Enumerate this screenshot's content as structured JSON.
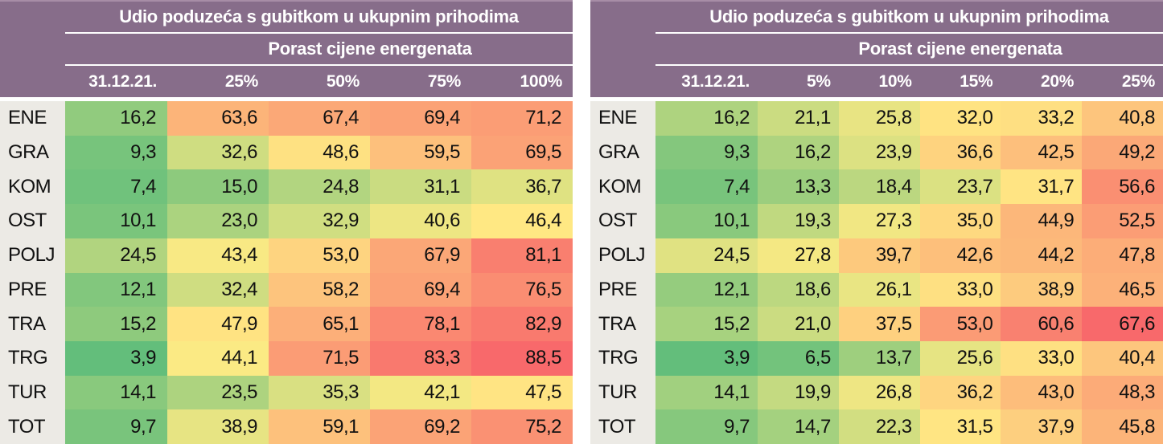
{
  "colors": {
    "page_background": "#FFFFFF",
    "header_background": "#876D8A",
    "header_top_edge": "#A78DA6",
    "header_text": "#FFFFFF",
    "header_underline": "#FFFFFF",
    "row_label_background": "#ECEAE5",
    "cell_text": "#111111",
    "scale_low_green": "#63BE7B",
    "scale_mid_yellow": "#FFEB84",
    "scale_high_red": "#F8696B"
  },
  "chart_data": [
    {
      "type": "heatmap",
      "title": "Udio poduzeća s gubitkom u ukupnim prihodima",
      "subtitle": "Porast cijene energenata",
      "columns": [
        "31.12.21.",
        "25%",
        "50%",
        "75%",
        "100%"
      ],
      "row_labels": [
        "ENE",
        "GRA",
        "KOM",
        "OST",
        "POLJ",
        "PRE",
        "TRA",
        "TRG",
        "TUR",
        "TOT"
      ],
      "values": [
        [
          16.2,
          63.6,
          67.4,
          69.4,
          71.2
        ],
        [
          9.3,
          32.6,
          48.6,
          59.5,
          69.5
        ],
        [
          7.4,
          15.0,
          24.8,
          31.1,
          36.7
        ],
        [
          10.1,
          23.0,
          32.9,
          40.6,
          46.4
        ],
        [
          24.5,
          43.4,
          53.0,
          67.9,
          81.1
        ],
        [
          12.1,
          32.4,
          58.2,
          69.4,
          76.5
        ],
        [
          15.2,
          47.9,
          65.1,
          78.1,
          82.9
        ],
        [
          3.9,
          44.1,
          71.5,
          83.3,
          88.5
        ],
        [
          14.1,
          23.5,
          35.3,
          42.1,
          47.5
        ],
        [
          9.7,
          38.9,
          59.1,
          69.2,
          75.2
        ]
      ],
      "color_scale": {
        "low_color": "#63BE7B",
        "mid_color": "#FFEB84",
        "high_color": "#F8696B",
        "midpoint": "median",
        "normalization": "per-table"
      },
      "decimal_separator": ",",
      "decimals": 1,
      "legend": "none",
      "grid": "off"
    },
    {
      "type": "heatmap",
      "title": "Udio poduzeća s gubitkom u ukupnim prihodima",
      "subtitle": "Porast cijene energenata",
      "columns": [
        "31.12.21.",
        "5%",
        "10%",
        "15%",
        "20%",
        "25%"
      ],
      "row_labels": [
        "ENE",
        "GRA",
        "KOM",
        "OST",
        "POLJ",
        "PRE",
        "TRA",
        "TRG",
        "TUR",
        "TOT"
      ],
      "values": [
        [
          16.2,
          21.1,
          25.8,
          32.0,
          33.2,
          40.8
        ],
        [
          9.3,
          16.2,
          23.9,
          36.6,
          42.5,
          49.2
        ],
        [
          7.4,
          13.3,
          18.4,
          23.7,
          31.7,
          56.6
        ],
        [
          10.1,
          19.3,
          27.3,
          35.0,
          44.9,
          52.5
        ],
        [
          24.5,
          27.8,
          39.7,
          42.6,
          44.2,
          47.8
        ],
        [
          12.1,
          18.6,
          26.1,
          33.0,
          38.9,
          46.5
        ],
        [
          15.2,
          21.0,
          37.5,
          53.0,
          60.6,
          67.6
        ],
        [
          3.9,
          6.5,
          13.7,
          25.6,
          33.0,
          40.4
        ],
        [
          14.1,
          19.9,
          26.8,
          36.2,
          43.0,
          48.3
        ],
        [
          9.7,
          14.7,
          22.3,
          31.5,
          37.9,
          45.8
        ]
      ],
      "color_scale": {
        "low_color": "#63BE7B",
        "mid_color": "#FFEB84",
        "high_color": "#F8696B",
        "midpoint": "median",
        "normalization": "per-table"
      },
      "decimal_separator": ",",
      "decimals": 1,
      "legend": "none",
      "grid": "off"
    }
  ]
}
